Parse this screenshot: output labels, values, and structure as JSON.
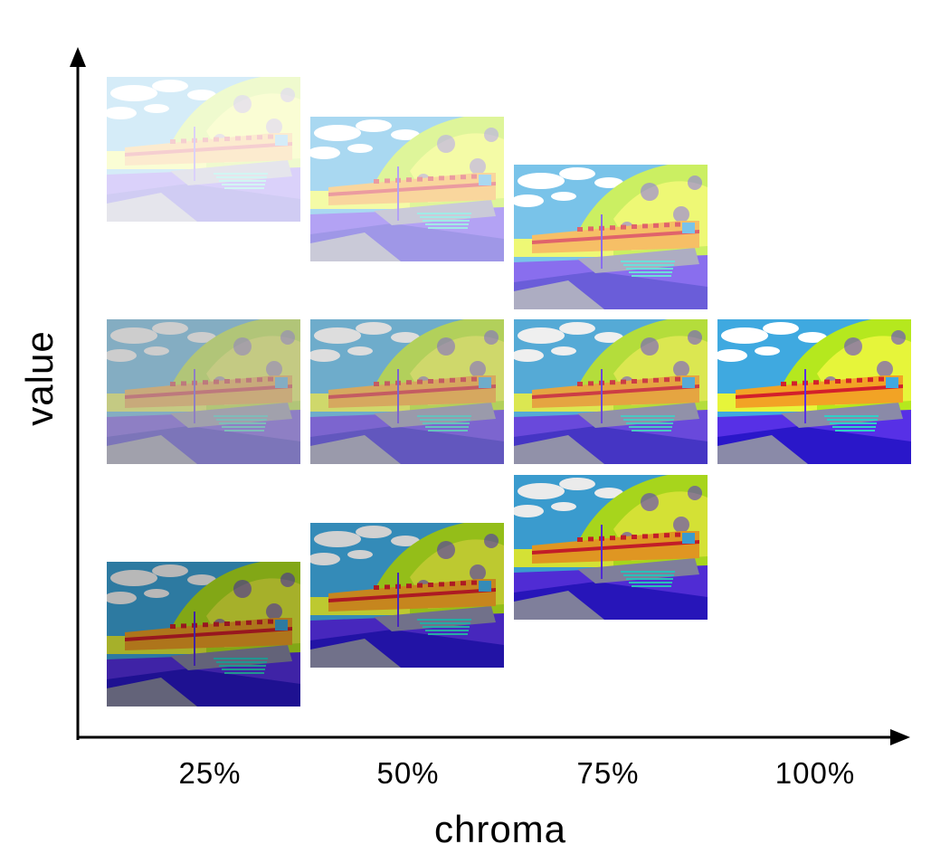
{
  "figure": {
    "x_axis_title": "chroma",
    "y_axis_title": "value",
    "x_tick_labels": [
      "25%",
      "50%",
      "75%",
      "100%"
    ],
    "tile_subject": "train-photo-colormap",
    "palette": {
      "sky": "#3fa9e0",
      "cloud": "#ffffff",
      "foliage": "#b5e81e",
      "foliage_light": "#e6f53a",
      "train_body": "#f2a325",
      "train_stripe": "#d3202b",
      "ground": "#5730e6",
      "ground_dark": "#2a17c9",
      "path": "#8a8aa8",
      "stairs": "#2fd0c8",
      "axis": "#000000"
    },
    "grid": {
      "columns": [
        "25%",
        "50%",
        "75%",
        "100%"
      ],
      "tiles": [
        {
          "column": "25%",
          "row": "top",
          "mix_white": 0.78,
          "mix_gray": 0.0
        },
        {
          "column": "50%",
          "row": "top",
          "mix_white": 0.55,
          "mix_gray": 0.0
        },
        {
          "column": "75%",
          "row": "top",
          "mix_white": 0.3,
          "mix_gray": 0.0
        },
        {
          "column": "25%",
          "row": "middle",
          "mix_white": 0.0,
          "mix_gray": 0.62
        },
        {
          "column": "50%",
          "row": "middle",
          "mix_white": 0.0,
          "mix_gray": 0.42
        },
        {
          "column": "75%",
          "row": "middle",
          "mix_white": 0.0,
          "mix_gray": 0.2
        },
        {
          "column": "100%",
          "row": "middle",
          "mix_white": 0.0,
          "mix_gray": 0.0
        },
        {
          "column": "75%",
          "row": "lower",
          "mix_white": 0.0,
          "mix_gray": 0.0,
          "dark": 0.08
        },
        {
          "column": "50%",
          "row": "lower",
          "mix_white": 0.0,
          "mix_gray": 0.0,
          "dark": 0.18
        },
        {
          "column": "25%",
          "row": "bottom",
          "mix_white": 0.0,
          "mix_gray": 0.0,
          "dark": 0.28
        }
      ]
    }
  }
}
